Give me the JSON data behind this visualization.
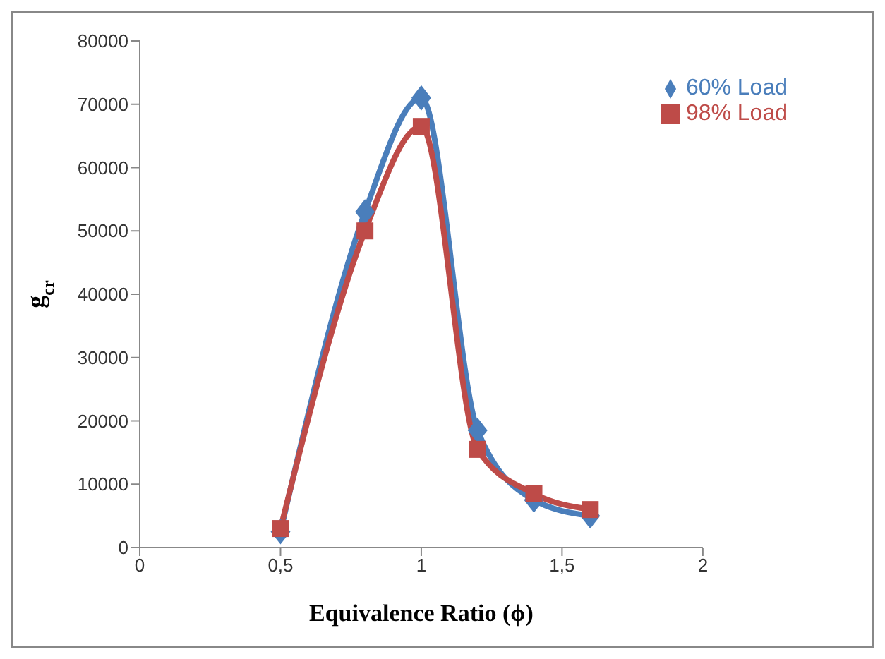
{
  "chart_data": {
    "type": "line",
    "xlabel": "Equivalence Ratio (ϕ)",
    "ylabel": "g$_{cr}$",
    "x": [
      0.5,
      0.8,
      1.0,
      1.2,
      1.4,
      1.6
    ],
    "series": [
      {
        "name": "60% Load",
        "color": "#4a7ebb",
        "marker": "diamond",
        "values": [
          2500,
          53000,
          71000,
          18500,
          7500,
          5000
        ]
      },
      {
        "name": "98% Load",
        "color": "#be4b48",
        "marker": "square",
        "values": [
          3000,
          50000,
          66500,
          15500,
          8500,
          6000
        ]
      }
    ],
    "xlim": [
      0,
      2
    ],
    "xticks": [
      0,
      {
        "value": 0.5,
        "label": "0,5"
      },
      1,
      {
        "value": 1.5,
        "label": "1,5"
      },
      2
    ],
    "ylim": [
      0,
      80000
    ],
    "yticks": [
      0,
      10000,
      20000,
      30000,
      40000,
      50000,
      60000,
      70000,
      80000
    ],
    "legend": "top right",
    "line_style": "solid"
  }
}
